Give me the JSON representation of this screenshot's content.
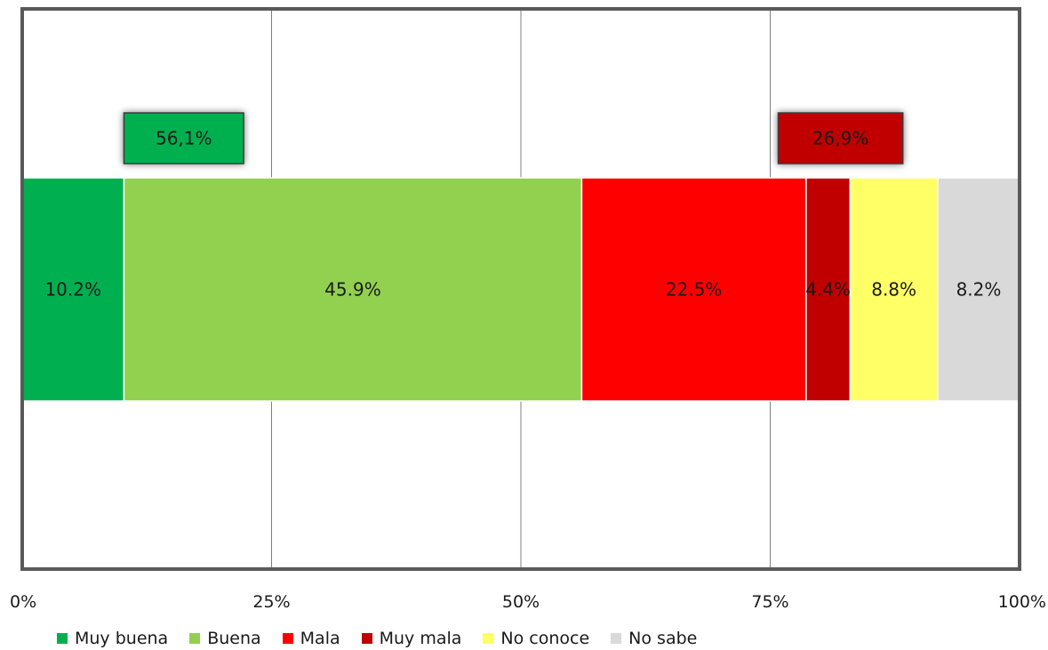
{
  "chart_data": {
    "type": "bar",
    "orientation": "horizontal",
    "stacked": true,
    "title": "",
    "xlabel": "",
    "ylabel": "",
    "xlim": [
      0,
      100
    ],
    "x_tick_labels": [
      "0%",
      "25%",
      "50%",
      "75%",
      "100%"
    ],
    "grid": true,
    "legend_position": "bottom",
    "series": [
      {
        "name": "Muy buena",
        "value": 10.2,
        "label": "10.2%",
        "color": "#00b050"
      },
      {
        "name": "Buena",
        "value": 45.9,
        "label": "45.9%",
        "color": "#92d050"
      },
      {
        "name": "Mala",
        "value": 22.5,
        "label": "22.5%",
        "color": "#ff0000"
      },
      {
        "name": "Muy mala",
        "value": 4.4,
        "label": "4.4%",
        "color": "#c00000"
      },
      {
        "name": "No conoce",
        "value": 8.8,
        "label": "8.8%",
        "color": "#ffff66"
      },
      {
        "name": "No sabe",
        "value": 8.2,
        "label": "8.2%",
        "color": "#d9d9d9"
      }
    ],
    "annotations": [
      {
        "text": "56,1%",
        "color": "#00b050"
      },
      {
        "text": "26,9%",
        "color": "#c00000"
      }
    ]
  }
}
